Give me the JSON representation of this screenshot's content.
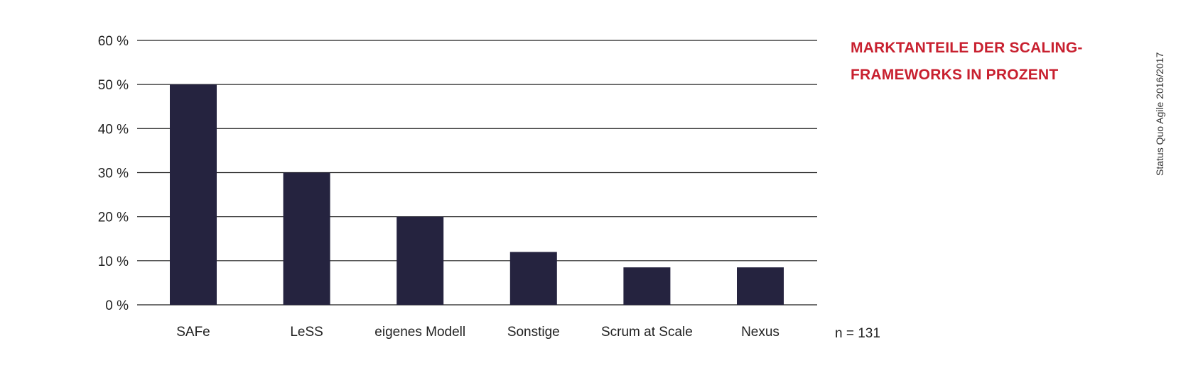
{
  "chart_data": {
    "type": "bar",
    "title_lines": [
      "MARKTANTEILE DER SCALING-",
      "FRAMEWORKS IN PROZENT"
    ],
    "categories": [
      "SAFe",
      "LeSS",
      "eigenes Modell",
      "Sonstige",
      "Scrum at Scale",
      "Nexus"
    ],
    "values": [
      50,
      30,
      20,
      12,
      8.5,
      8.5
    ],
    "ylim": [
      0,
      60
    ],
    "yticks": [
      0,
      10,
      20,
      30,
      40,
      50,
      60
    ],
    "ytick_labels": [
      "0 %",
      "10 %",
      "20 %",
      "30 %",
      "40 %",
      "50 %",
      "60 %"
    ],
    "grid": true,
    "note": "n = 131",
    "source": "Status Quo Agile 2016/2017"
  },
  "colors": {
    "bar": "#25233f",
    "title": "#c8202f",
    "grid": "#1f1f1f"
  }
}
